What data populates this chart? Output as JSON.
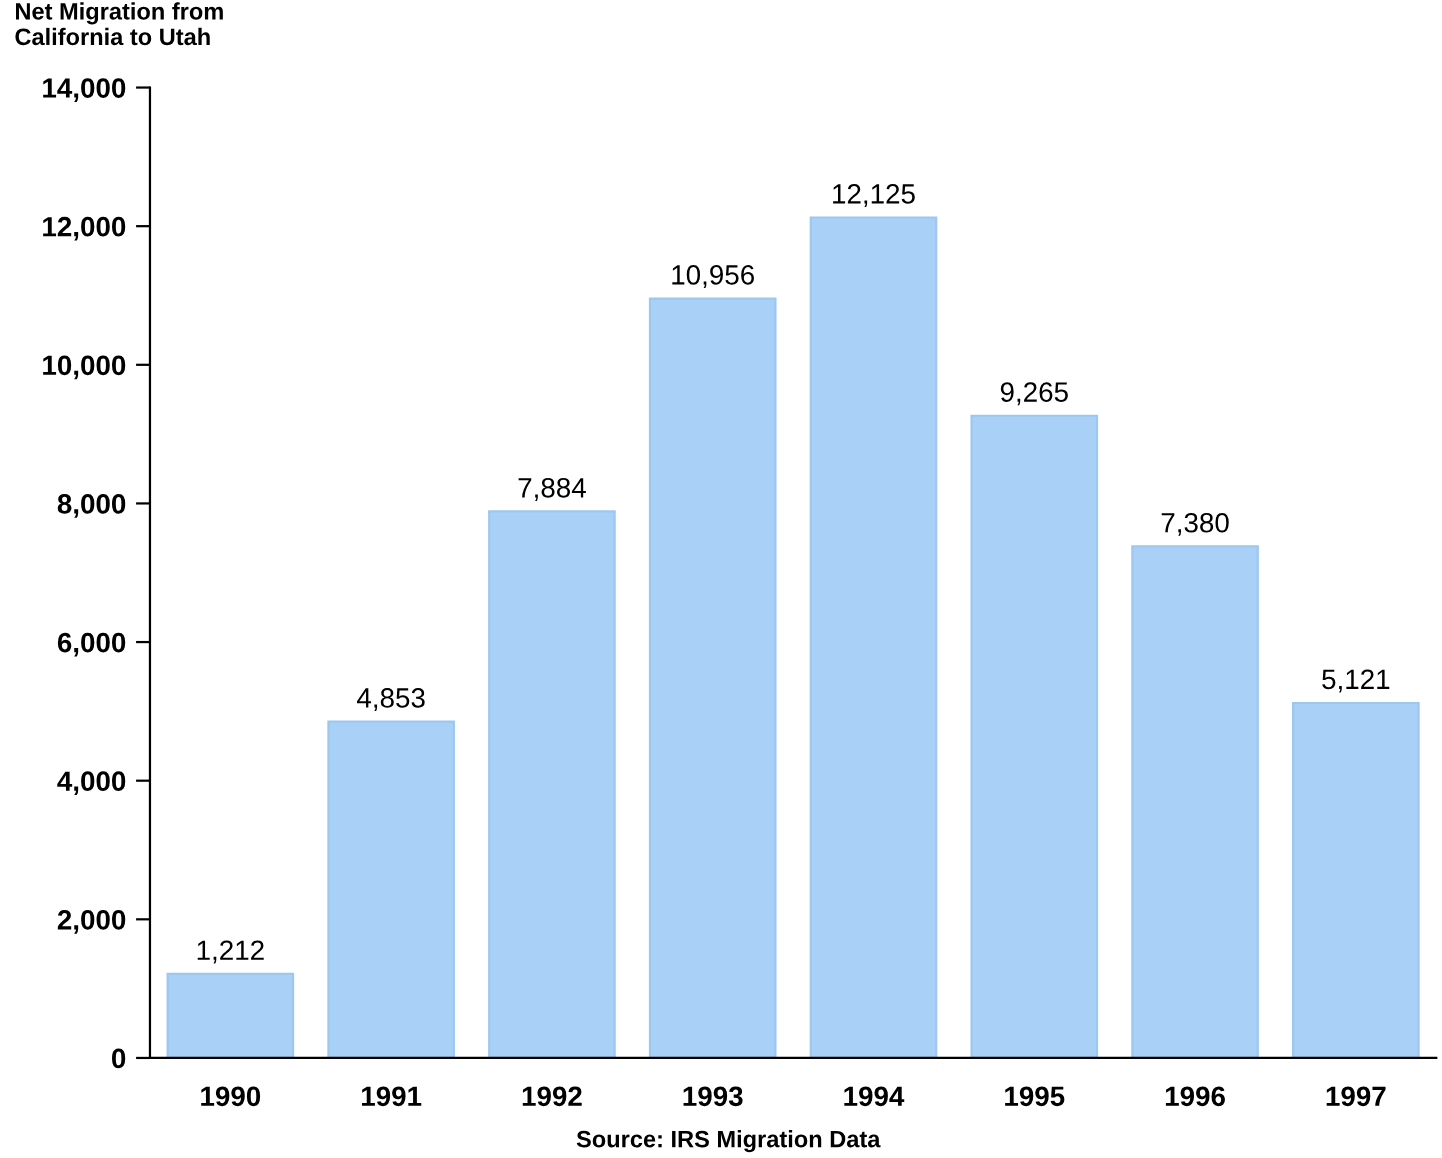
{
  "chart_data": {
    "type": "bar",
    "title": "Net Migration from\nCalifornia to Utah",
    "categories": [
      "1990",
      "1991",
      "1992",
      "1993",
      "1994",
      "1995",
      "1996",
      "1997"
    ],
    "values": [
      1212,
      4853,
      7884,
      10956,
      12125,
      9265,
      7380,
      5121
    ],
    "color": "#a9d1f7",
    "value_labels": [
      "1,212",
      "4,853",
      "7,884",
      "10,956",
      "12,125",
      "9,265",
      "7,380",
      "5,121"
    ],
    "ylim": [
      0,
      14000
    ],
    "yticks": [
      {
        "value": 0,
        "label": "0"
      },
      {
        "value": 2000,
        "label": "2,000"
      },
      {
        "value": 4000,
        "label": "4,000"
      },
      {
        "value": 6000,
        "label": "6,000"
      },
      {
        "value": 8000,
        "label": "8,000"
      },
      {
        "value": 10000,
        "label": "10,000"
      },
      {
        "value": 12000,
        "label": "12,000"
      },
      {
        "value": 14000,
        "label": "14,000"
      }
    ],
    "annotations": [
      "Source: IRS Migration Data"
    ],
    "grid": false,
    "legend": false
  }
}
